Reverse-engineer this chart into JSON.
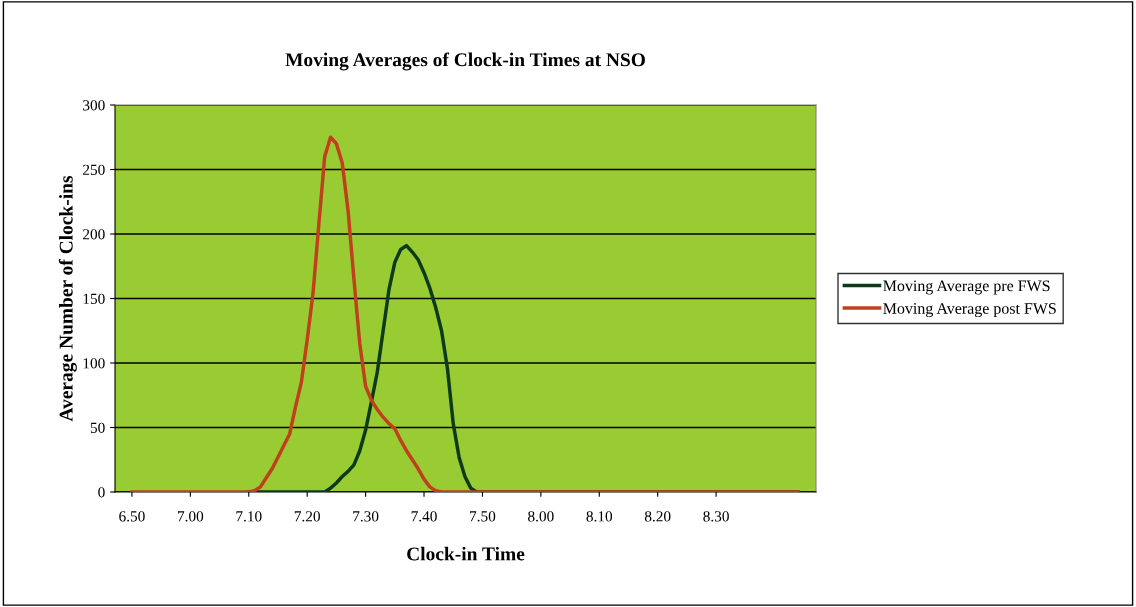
{
  "chart_data": {
    "type": "line",
    "title": "Moving Averages of Clock-in Times at NSO",
    "xlabel": "Clock-in Time",
    "ylabel": "Average Number of Clock-ins",
    "categories": [
      "6.50",
      null,
      null,
      null,
      null,
      null,
      null,
      null,
      null,
      null,
      "7.00",
      null,
      null,
      null,
      null,
      null,
      null,
      null,
      null,
      null,
      "7.10",
      null,
      null,
      null,
      null,
      null,
      null,
      null,
      null,
      null,
      "7.20",
      null,
      null,
      null,
      null,
      null,
      null,
      null,
      null,
      null,
      "7.30",
      null,
      null,
      null,
      null,
      null,
      null,
      null,
      null,
      null,
      "7.40",
      null,
      null,
      null,
      null,
      null,
      null,
      null,
      null,
      null,
      "7.50",
      null,
      null,
      null,
      null,
      null,
      null,
      null,
      null,
      null,
      "8.00",
      null,
      null,
      null,
      null,
      null,
      null,
      null,
      null,
      null,
      "8.10",
      null,
      null,
      null,
      null,
      null,
      null,
      null,
      null,
      null,
      "8.20",
      null,
      null,
      null,
      null,
      null,
      null,
      null,
      null,
      null,
      "8.30",
      null,
      null,
      null,
      null,
      null,
      null,
      null,
      null,
      null,
      null,
      null,
      null,
      null,
      null
    ],
    "ylim": [
      0,
      300
    ],
    "yticks": [
      0,
      50,
      100,
      150,
      200,
      250,
      300
    ],
    "grid": "y",
    "legend": "right",
    "marker": "none",
    "line_style": "solid",
    "series": [
      {
        "name": "Moving Average pre FWS",
        "color": "#0d3b1a",
        "values": [
          null,
          null,
          null,
          null,
          null,
          null,
          null,
          null,
          null,
          null,
          null,
          null,
          null,
          null,
          null,
          null,
          null,
          null,
          null,
          null,
          0,
          0,
          0,
          0,
          0,
          0,
          0,
          0,
          0,
          0,
          0,
          0,
          0,
          0,
          3,
          7,
          12,
          16,
          21,
          32,
          48,
          70,
          93,
          125,
          157,
          178,
          188,
          191,
          186,
          180,
          170,
          158,
          143,
          125,
          96,
          53,
          27,
          12,
          3,
          0,
          0,
          0,
          0,
          0,
          0,
          0,
          0,
          0,
          0,
          0,
          0,
          0,
          0,
          0,
          0,
          0,
          0,
          0,
          0,
          0,
          0,
          0,
          0,
          0,
          0,
          0,
          0,
          0,
          0,
          0,
          0,
          0,
          0,
          0,
          0,
          0,
          0,
          0,
          0,
          0,
          0,
          0,
          0,
          0,
          0,
          0,
          0,
          0,
          0,
          0,
          0,
          0,
          0,
          0,
          0
        ]
      },
      {
        "name": "Moving Average post FWS",
        "color": "#c0401e",
        "values": [
          0,
          0,
          0,
          0,
          0,
          0,
          0,
          0,
          0,
          0,
          0,
          0,
          0,
          0,
          0,
          0,
          0,
          0,
          0,
          0,
          0,
          1,
          4,
          11,
          18,
          27,
          36,
          45,
          66,
          85,
          118,
          154,
          208,
          260,
          275,
          270,
          255,
          218,
          165,
          115,
          82,
          71,
          64,
          58,
          53,
          49,
          40,
          32,
          25,
          18,
          10,
          4,
          1,
          0,
          0,
          0,
          0,
          0,
          0,
          0,
          0,
          0,
          0,
          0,
          0,
          0,
          0,
          0,
          0,
          0,
          0,
          0,
          0,
          0,
          0,
          0,
          0,
          0,
          0,
          0,
          0,
          0,
          0,
          0,
          0,
          0,
          0,
          0,
          0,
          0,
          0,
          0,
          0,
          0,
          0,
          0,
          0,
          0,
          0,
          0,
          0,
          0,
          0,
          0,
          0,
          0,
          0,
          0,
          0,
          0,
          0,
          0,
          0,
          0,
          0
        ]
      }
    ]
  }
}
